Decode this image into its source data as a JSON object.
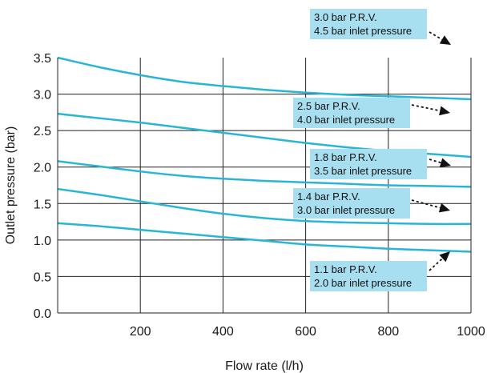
{
  "chart_data": {
    "type": "line",
    "title": "",
    "xlabel": "Flow rate (l/h)",
    "ylabel": "Outlet pressure (bar)",
    "xlim": [
      0,
      1000
    ],
    "ylim": [
      0.0,
      3.5
    ],
    "x_ticks": [
      200,
      400,
      600,
      800,
      1000
    ],
    "x_tick_labels": [
      "200",
      "400",
      "600",
      "800",
      "1000"
    ],
    "y_ticks": [
      0.0,
      0.5,
      1.0,
      1.5,
      2.0,
      2.5,
      3.0,
      3.5
    ],
    "y_tick_labels": [
      "0.0",
      "0.5",
      "1.0",
      "1.5",
      "2.0",
      "2.5",
      "3.0",
      "3.5"
    ],
    "grid": true,
    "line_color": "#29b6d6",
    "label_box_color": "#a8dff0",
    "series": [
      {
        "label_lines": [
          "3.0 bar P.R.V.",
          "4.5 bar inlet pressure"
        ],
        "x": [
          0,
          100,
          200,
          300,
          400,
          500,
          600,
          700,
          800,
          900,
          1000
        ],
        "y": [
          3.5,
          3.37,
          3.26,
          3.17,
          3.11,
          3.06,
          3.02,
          2.99,
          2.97,
          2.95,
          2.93
        ]
      },
      {
        "label_lines": [
          "2.5 bar P.R.V.",
          "4.0 bar inlet pressure"
        ],
        "x": [
          0,
          100,
          200,
          300,
          400,
          500,
          600,
          700,
          800,
          900,
          1000
        ],
        "y": [
          2.73,
          2.67,
          2.61,
          2.54,
          2.47,
          2.4,
          2.33,
          2.27,
          2.22,
          2.18,
          2.14
        ]
      },
      {
        "label_lines": [
          "1.8 bar P.R.V.",
          "3.5 bar inlet pressure"
        ],
        "x": [
          0,
          100,
          200,
          300,
          400,
          500,
          600,
          700,
          800,
          900,
          1000
        ],
        "y": [
          2.08,
          2.01,
          1.94,
          1.88,
          1.84,
          1.81,
          1.79,
          1.77,
          1.75,
          1.74,
          1.73
        ]
      },
      {
        "label_lines": [
          "1.4 bar P.R.V.",
          "3.0 bar inlet pressure"
        ],
        "x": [
          0,
          100,
          200,
          300,
          400,
          500,
          600,
          700,
          800,
          900,
          1000
        ],
        "y": [
          1.7,
          1.62,
          1.53,
          1.44,
          1.36,
          1.3,
          1.26,
          1.24,
          1.23,
          1.22,
          1.22
        ]
      },
      {
        "label_lines": [
          "1.1 bar P.R.V.",
          "2.0 bar inlet pressure"
        ],
        "x": [
          0,
          100,
          200,
          300,
          400,
          500,
          600,
          700,
          800,
          900,
          1000
        ],
        "y": [
          1.23,
          1.19,
          1.14,
          1.09,
          1.04,
          0.99,
          0.94,
          0.91,
          0.88,
          0.86,
          0.84
        ]
      }
    ]
  }
}
